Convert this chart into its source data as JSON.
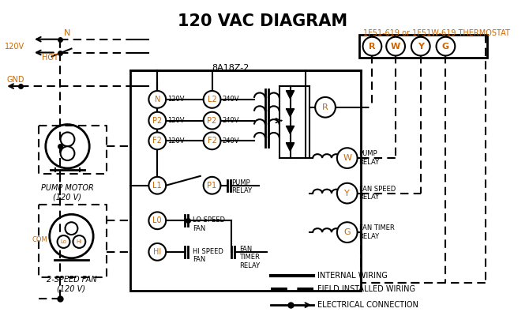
{
  "title": "120 VAC DIAGRAM",
  "subtitle": "1F51-619 or 1F51W-619 THERMOSTAT",
  "box_label": "8A18Z-2",
  "bg": "#ffffff",
  "lc": "#000000",
  "oc": "#cc6600",
  "terminal_labels": [
    "R",
    "W",
    "Y",
    "G"
  ],
  "input_labels_left": [
    "N",
    "P2",
    "F2"
  ],
  "input_labels_right": [
    "L2",
    "P2",
    "F2"
  ],
  "input_voltages_left": [
    "120V",
    "120V",
    "120V"
  ],
  "input_voltages_right": [
    "240V",
    "240V",
    "240V"
  ],
  "legend_items": [
    "INTERNAL WIRING",
    "FIELD INSTALLED WIRING",
    "ELECTRICAL CONNECTION"
  ],
  "pump_motor_label": "PUMP MOTOR\n(120 V)",
  "fan_label": "2-SPEED FAN\n(120 V)"
}
